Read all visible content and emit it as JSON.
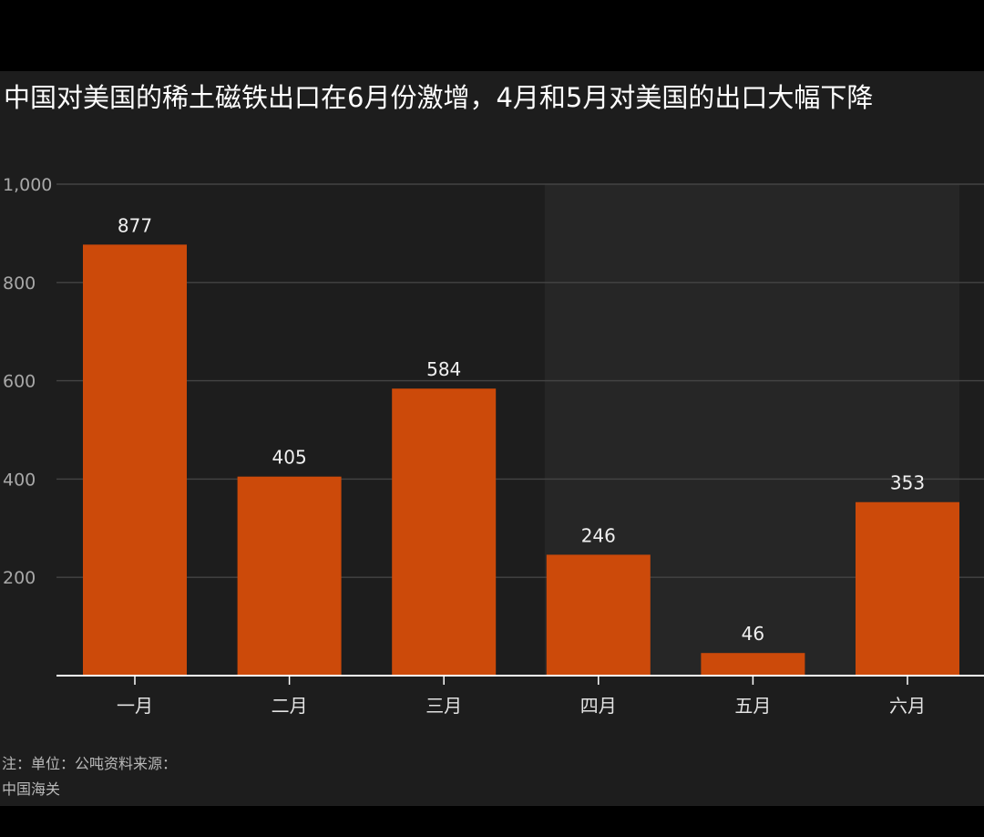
{
  "title": "中国对美国的稀土磁铁出口在6月份激增，4月和5月对美国的出口大幅下降",
  "colors": {
    "bar": "#cc4a0a",
    "background": "#1d1d1d",
    "highlight_region": "#262626",
    "grid": "#444444",
    "baseline": "#ffffff"
  },
  "chart_data": {
    "type": "bar",
    "categories": [
      "一月",
      "二月",
      "三月",
      "四月",
      "五月",
      "六月"
    ],
    "values": [
      877,
      405,
      584,
      246,
      46,
      353
    ],
    "value_labels": [
      "877",
      "405",
      "584",
      "246",
      "46",
      "353"
    ],
    "ylim": [
      0,
      1000
    ],
    "yticks": [
      200,
      400,
      600,
      800,
      1000
    ],
    "ytick_labels": [
      "200",
      "400",
      "600",
      "800",
      "1,000"
    ],
    "highlight_categories": [
      "四月",
      "五月",
      "六月"
    ],
    "grid": true
  },
  "footnote": {
    "line1": "注：单位：公吨资料来源：",
    "line2": "中国海关"
  }
}
